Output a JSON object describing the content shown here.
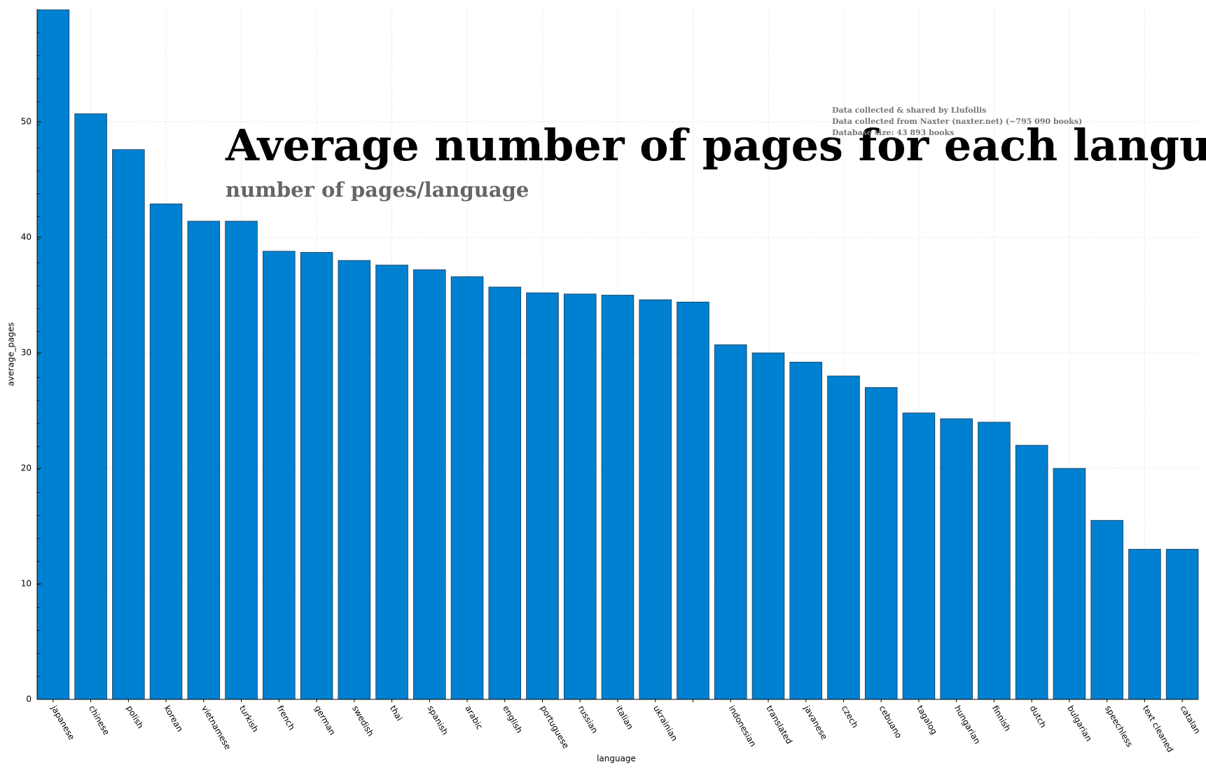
{
  "chart_data": {
    "type": "bar",
    "title": "Average number of pages for each languages",
    "subtitle": "number of pages/language",
    "annotations": [
      "Data collected & shared  by Llufollis",
      "Data collected from Naxter (naxter.net) (~795 090 books)",
      "Database size: 43 893 books"
    ],
    "x_label": "language",
    "y_label": "average_pages",
    "categories": [
      "japanese",
      "chinese",
      "polish",
      "korean",
      "vietnamese",
      "turkish",
      "french",
      "german",
      "swedish",
      "thai",
      "spanish",
      "arabic",
      "english",
      "portuguese",
      "russian",
      "italian",
      "ukrainian",
      null,
      "indonesian",
      "translated",
      "javanese",
      "czech",
      "cebuano",
      "tagalog",
      "hungarian",
      "finnish",
      "dutch",
      "bulgarian",
      "speechless",
      "text cleaned",
      "catalan"
    ],
    "values": [
      59.7,
      50.7,
      47.6,
      42.9,
      41.4,
      41.4,
      38.8,
      38.7,
      38.0,
      37.6,
      37.2,
      36.6,
      35.7,
      35.2,
      35.1,
      35.0,
      34.6,
      34.4,
      30.7,
      30.0,
      29.2,
      28.0,
      27.0,
      24.8,
      24.3,
      24.0,
      22.0,
      20.0,
      15.5,
      13.0,
      13.0
    ],
    "color": "#0080d0",
    "ylim": [
      0,
      59.7
    ],
    "yticks": [
      0,
      10,
      20,
      30,
      40,
      50
    ],
    "grid": true
  }
}
